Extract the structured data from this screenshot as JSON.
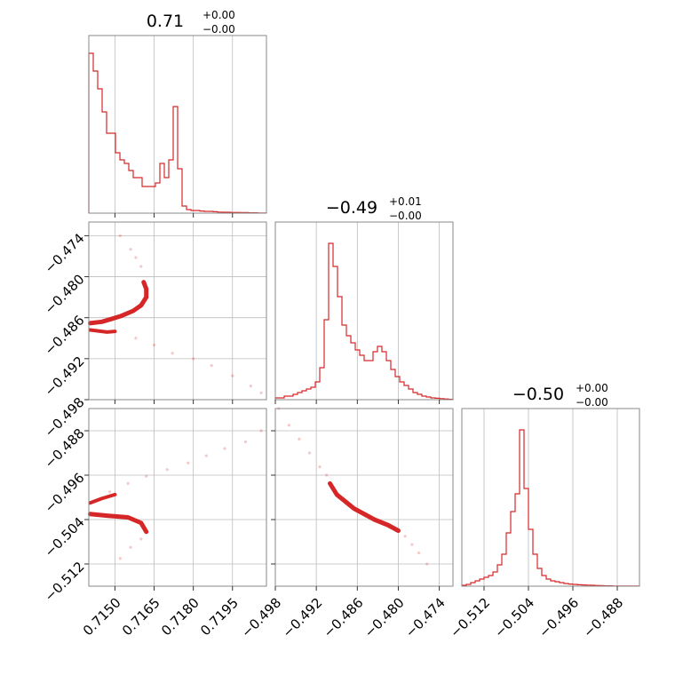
{
  "chart_data": {
    "type": "corner",
    "color": "#d62728",
    "grid": true,
    "parameters": [
      {
        "title": "0.71",
        "title_plus": "+0.00",
        "title_minus": "−0.00",
        "range": [
          0.714,
          0.7208
        ],
        "ticks": [
          0.715,
          0.7165,
          0.718,
          0.7195
        ],
        "tick_labels": [
          "0.7150",
          "0.7165",
          "0.7180",
          "0.7195"
        ],
        "histogram": [
          0.9,
          0.8,
          0.7,
          0.57,
          0.45,
          0.45,
          0.34,
          0.3,
          0.28,
          0.24,
          0.2,
          0.2,
          0.15,
          0.15,
          0.15,
          0.17,
          0.28,
          0.2,
          0.3,
          0.6,
          0.25,
          0.04,
          0.02,
          0.015,
          0.015,
          0.012,
          0.01,
          0.01,
          0.008,
          0.006,
          0.005,
          0.005,
          0.004,
          0.004,
          0.003,
          0.003,
          0.002,
          0.002,
          0.001,
          0.001
        ],
        "hist_scale": 1.0
      },
      {
        "title": "−0.49",
        "title_plus": "+0.01",
        "title_minus": "−0.00",
        "range": [
          -0.498,
          -0.472
        ],
        "ticks": [
          -0.498,
          -0.492,
          -0.486,
          -0.48,
          -0.474
        ],
        "tick_labels": [
          "−0.498",
          "−0.492",
          "−0.486",
          "−0.480",
          "−0.474"
        ],
        "histogram": [
          0.01,
          0.01,
          0.02,
          0.02,
          0.03,
          0.04,
          0.05,
          0.06,
          0.07,
          0.1,
          0.18,
          0.45,
          0.88,
          0.75,
          0.58,
          0.42,
          0.36,
          0.32,
          0.28,
          0.25,
          0.22,
          0.22,
          0.27,
          0.3,
          0.27,
          0.22,
          0.17,
          0.13,
          0.1,
          0.08,
          0.06,
          0.04,
          0.03,
          0.02,
          0.015,
          0.01,
          0.008,
          0.006,
          0.004,
          0.002
        ],
        "hist_scale": 1.0
      },
      {
        "title": "−0.50",
        "title_plus": "+0.00",
        "title_minus": "−0.00",
        "range": [
          -0.516,
          -0.484
        ],
        "ticks": [
          -0.512,
          -0.504,
          -0.496,
          -0.488
        ],
        "tick_labels": [
          "−0.512",
          "−0.504",
          "−0.496",
          "−0.488"
        ],
        "histogram": [
          0.005,
          0.01,
          0.02,
          0.03,
          0.04,
          0.05,
          0.06,
          0.08,
          0.12,
          0.18,
          0.3,
          0.42,
          0.52,
          0.88,
          0.55,
          0.32,
          0.18,
          0.1,
          0.06,
          0.04,
          0.03,
          0.025,
          0.02,
          0.015,
          0.012,
          0.01,
          0.008,
          0.007,
          0.006,
          0.005,
          0.004,
          0.003,
          0.002,
          0.002,
          0.001,
          0.001,
          0.001,
          0.001,
          0.0005,
          0.0005
        ],
        "hist_scale": 1.0
      }
    ],
    "pairs": [
      {
        "x_param": 0,
        "y_param": 1,
        "contour": [
          [
            0.71405,
            -0.4868
          ],
          [
            0.7145,
            -0.4866
          ],
          [
            0.7152,
            -0.4858
          ],
          [
            0.7157,
            -0.485
          ],
          [
            0.716,
            -0.4842
          ],
          [
            0.7162,
            -0.483
          ],
          [
            0.7162,
            -0.4818
          ],
          [
            0.7161,
            -0.4808
          ]
        ],
        "contour_lower": [
          [
            0.71405,
            -0.4878
          ],
          [
            0.7147,
            -0.4881
          ],
          [
            0.715,
            -0.488
          ]
        ],
        "scatter": [
          [
            0.7152,
            -0.474
          ],
          [
            0.7156,
            -0.476
          ],
          [
            0.7158,
            -0.4772
          ],
          [
            0.716,
            -0.4785
          ],
          [
            0.7158,
            -0.489
          ],
          [
            0.7165,
            -0.49
          ],
          [
            0.7172,
            -0.4912
          ],
          [
            0.718,
            -0.492
          ],
          [
            0.7187,
            -0.493
          ],
          [
            0.7195,
            -0.4945
          ],
          [
            0.7202,
            -0.496
          ],
          [
            0.7206,
            -0.497
          ]
        ]
      },
      {
        "x_param": 0,
        "y_param": 2,
        "contour": [
          [
            0.71405,
            -0.503
          ],
          [
            0.7147,
            -0.5033
          ],
          [
            0.7155,
            -0.5036
          ],
          [
            0.716,
            -0.5046
          ],
          [
            0.7162,
            -0.5062
          ]
        ],
        "contour_lower": [
          [
            0.71405,
            -0.501
          ],
          [
            0.7145,
            -0.5002
          ],
          [
            0.715,
            -0.4995
          ]
        ],
        "scatter": [
          [
            0.7148,
            -0.499
          ],
          [
            0.7155,
            -0.4975
          ],
          [
            0.7162,
            -0.4962
          ],
          [
            0.717,
            -0.495
          ],
          [
            0.7178,
            -0.4938
          ],
          [
            0.7185,
            -0.4925
          ],
          [
            0.7192,
            -0.4912
          ],
          [
            0.72,
            -0.49
          ],
          [
            0.7206,
            -0.488
          ],
          [
            0.716,
            -0.5075
          ],
          [
            0.7156,
            -0.509
          ],
          [
            0.7152,
            -0.511
          ]
        ]
      },
      {
        "x_param": 1,
        "y_param": 2,
        "contour": [
          [
            -0.49,
            -0.4975
          ],
          [
            -0.489,
            -0.4995
          ],
          [
            -0.488,
            -0.5005
          ],
          [
            -0.4865,
            -0.502
          ],
          [
            -0.485,
            -0.503
          ],
          [
            -0.4835,
            -0.504
          ],
          [
            -0.4815,
            -0.505
          ],
          [
            -0.48,
            -0.506
          ]
        ],
        "contour_lower": [],
        "scatter": [
          [
            -0.4975,
            -0.484
          ],
          [
            -0.496,
            -0.487
          ],
          [
            -0.4945,
            -0.4895
          ],
          [
            -0.493,
            -0.492
          ],
          [
            -0.4915,
            -0.4945
          ],
          [
            -0.4905,
            -0.496
          ],
          [
            -0.479,
            -0.507
          ],
          [
            -0.478,
            -0.5085
          ],
          [
            -0.477,
            -0.51
          ],
          [
            -0.4758,
            -0.512
          ]
        ]
      }
    ]
  }
}
